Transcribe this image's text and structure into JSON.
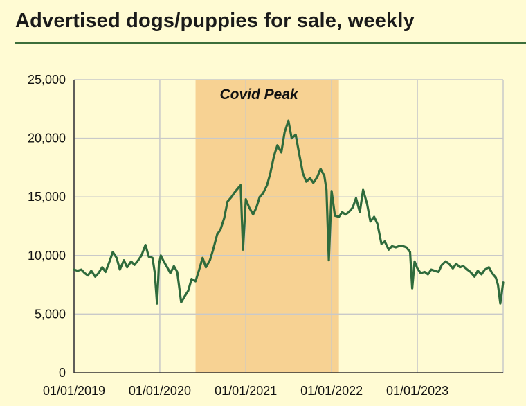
{
  "page": {
    "title": "Advertised dogs/puppies for sale, weekly",
    "background_color": "#fffbd3",
    "rule_color": "#3c6e3a"
  },
  "chart_data": {
    "type": "line",
    "title": "Advertised dogs/puppies for sale, weekly",
    "xlabel": "",
    "ylabel": "",
    "xlim": [
      "2019-01-01",
      "2024-01-01"
    ],
    "ylim": [
      0,
      25000
    ],
    "x_ticks": [
      "01/01/2019",
      "01/01/2020",
      "01/01/2021",
      "01/01/2022",
      "01/01/2023"
    ],
    "y_ticks": [
      "0",
      "5,000",
      "10,000",
      "15,000",
      "20,000",
      "25,000"
    ],
    "y_tick_values": [
      0,
      5000,
      10000,
      15000,
      20000,
      25000
    ],
    "x_tick_values": [
      "2019-01-01",
      "2020-01-01",
      "2021-01-01",
      "2022-01-01",
      "2023-01-01"
    ],
    "grid": true,
    "line_color": "#2f6b3c",
    "highlight": {
      "label": "Covid Peak",
      "start": "2020-06-01",
      "end": "2022-02-01",
      "color": "#f7d293"
    },
    "series": [
      {
        "x": [
          "2019-01-01",
          "2019-01-16",
          "2019-02-01",
          "2019-02-15",
          "2019-03-01",
          "2019-03-15",
          "2019-04-01",
          "2019-04-15",
          "2019-05-01",
          "2019-05-15",
          "2019-06-01",
          "2019-06-15",
          "2019-07-01",
          "2019-07-15",
          "2019-08-01",
          "2019-08-15",
          "2019-09-01",
          "2019-09-15",
          "2019-10-01",
          "2019-10-15",
          "2019-11-01",
          "2019-11-15",
          "2019-12-01",
          "2019-12-10",
          "2019-12-20",
          "2019-12-28",
          "2020-01-05",
          "2020-01-15",
          "2020-02-01",
          "2020-02-15",
          "2020-03-01",
          "2020-03-15",
          "2020-04-01",
          "2020-04-15",
          "2020-05-01",
          "2020-05-15",
          "2020-06-01",
          "2020-06-15",
          "2020-07-01",
          "2020-07-15",
          "2020-08-01",
          "2020-08-15",
          "2020-09-01",
          "2020-09-15",
          "2020-10-01",
          "2020-10-15",
          "2020-11-01",
          "2020-11-15",
          "2020-12-01",
          "2020-12-10",
          "2020-12-20",
          "2021-01-01",
          "2021-01-15",
          "2021-02-01",
          "2021-02-15",
          "2021-03-01",
          "2021-03-15",
          "2021-04-01",
          "2021-04-15",
          "2021-05-01",
          "2021-05-15",
          "2021-06-01",
          "2021-06-15",
          "2021-07-01",
          "2021-07-15",
          "2021-08-01",
          "2021-08-15",
          "2021-09-01",
          "2021-09-15",
          "2021-10-01",
          "2021-10-15",
          "2021-11-01",
          "2021-11-15",
          "2021-12-01",
          "2021-12-10",
          "2021-12-20",
          "2022-01-01",
          "2022-01-15",
          "2022-02-01",
          "2022-02-15",
          "2022-03-01",
          "2022-03-15",
          "2022-04-01",
          "2022-04-15",
          "2022-05-01",
          "2022-05-15",
          "2022-06-01",
          "2022-06-15",
          "2022-07-01",
          "2022-07-15",
          "2022-08-01",
          "2022-08-15",
          "2022-09-01",
          "2022-09-15",
          "2022-10-01",
          "2022-10-15",
          "2022-11-01",
          "2022-11-15",
          "2022-12-01",
          "2022-12-10",
          "2022-12-20",
          "2023-01-01",
          "2023-01-15",
          "2023-02-01",
          "2023-02-15",
          "2023-03-01",
          "2023-03-15",
          "2023-04-01",
          "2023-04-15",
          "2023-05-01",
          "2023-05-15",
          "2023-06-01",
          "2023-06-15",
          "2023-07-01",
          "2023-07-15",
          "2023-08-01",
          "2023-08-15",
          "2023-09-01",
          "2023-09-15",
          "2023-10-01",
          "2023-10-15",
          "2023-11-01",
          "2023-11-15",
          "2023-12-01",
          "2023-12-10",
          "2023-12-20",
          "2024-01-01"
        ],
        "y": [
          8800,
          8700,
          8800,
          8500,
          8300,
          8700,
          8200,
          8500,
          9000,
          8600,
          9500,
          10300,
          9800,
          8800,
          9600,
          9000,
          9500,
          9200,
          9600,
          10000,
          10900,
          9900,
          9800,
          8600,
          5900,
          9200,
          10000,
          9600,
          9000,
          8500,
          9100,
          8600,
          6000,
          6500,
          7000,
          8000,
          7800,
          8700,
          9800,
          9000,
          9600,
          10500,
          11800,
          12200,
          13200,
          14600,
          15000,
          15400,
          15800,
          16000,
          10500,
          14800,
          14100,
          13500,
          14100,
          15000,
          15300,
          16000,
          17000,
          18500,
          19400,
          18800,
          20500,
          21500,
          20000,
          20300,
          18800,
          17000,
          16300,
          16600,
          16200,
          16700,
          17400,
          16800,
          15600,
          9600,
          15500,
          13400,
          13300,
          13700,
          13500,
          13700,
          14100,
          14900,
          13700,
          15600,
          14400,
          12900,
          13300,
          12700,
          11000,
          11200,
          10500,
          10800,
          10700,
          10800,
          10800,
          10700,
          10300,
          7200,
          9500,
          8900,
          8500,
          8600,
          8400,
          8800,
          8700,
          8600,
          9200,
          9500,
          9300,
          8900,
          9300,
          9000,
          9100,
          8800,
          8600,
          8200,
          8700,
          8400,
          8800,
          9000,
          8500,
          8100,
          7500,
          5900,
          7700
        ]
      }
    ]
  }
}
